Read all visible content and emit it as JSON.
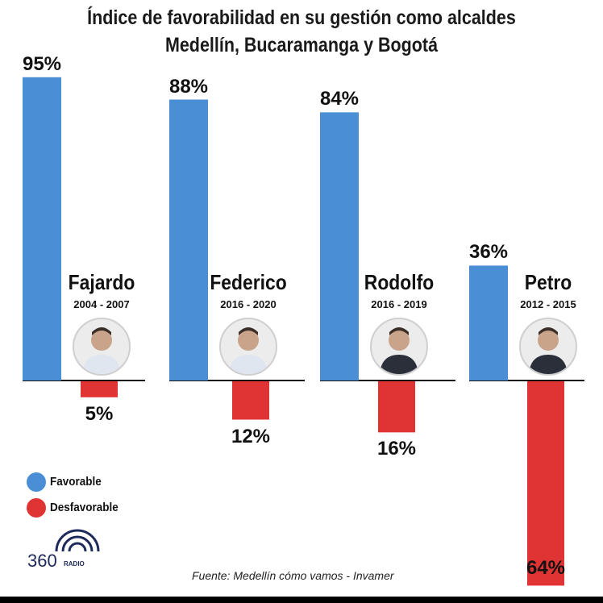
{
  "chart_data": {
    "type": "bar",
    "title": "Índice de favorabilidad en su gestión como alcaldes",
    "subtitle": "Medellín, Bucaramanga y Bogotá",
    "categories": [
      "Fajardo",
      "Federico",
      "Rodolfo",
      "Petro"
    ],
    "periods": [
      "2004 - 2007",
      "2016 - 2020",
      "2016 - 2019",
      "2012 - 2015"
    ],
    "series": [
      {
        "name": "Favorable",
        "values": [
          95,
          88,
          84,
          36
        ],
        "labels": [
          "95%",
          "88%",
          "84%",
          "36%"
        ],
        "color": "#4a8fd6"
      },
      {
        "name": "Desfavorable",
        "values": [
          -5,
          -12,
          -16,
          -64
        ],
        "labels": [
          "5%",
          "12%",
          "16%",
          "64%"
        ],
        "color": "#e03434"
      }
    ],
    "legend": "bottom-left",
    "grid": false
  },
  "source": "Fuente: Medellín cómo vamos - Invamer",
  "logo": {
    "text": "360",
    "sub": "RADIO"
  },
  "avatar_icons": [
    "person-photo-icon",
    "person-photo-icon",
    "person-photo-icon",
    "person-photo-icon"
  ]
}
